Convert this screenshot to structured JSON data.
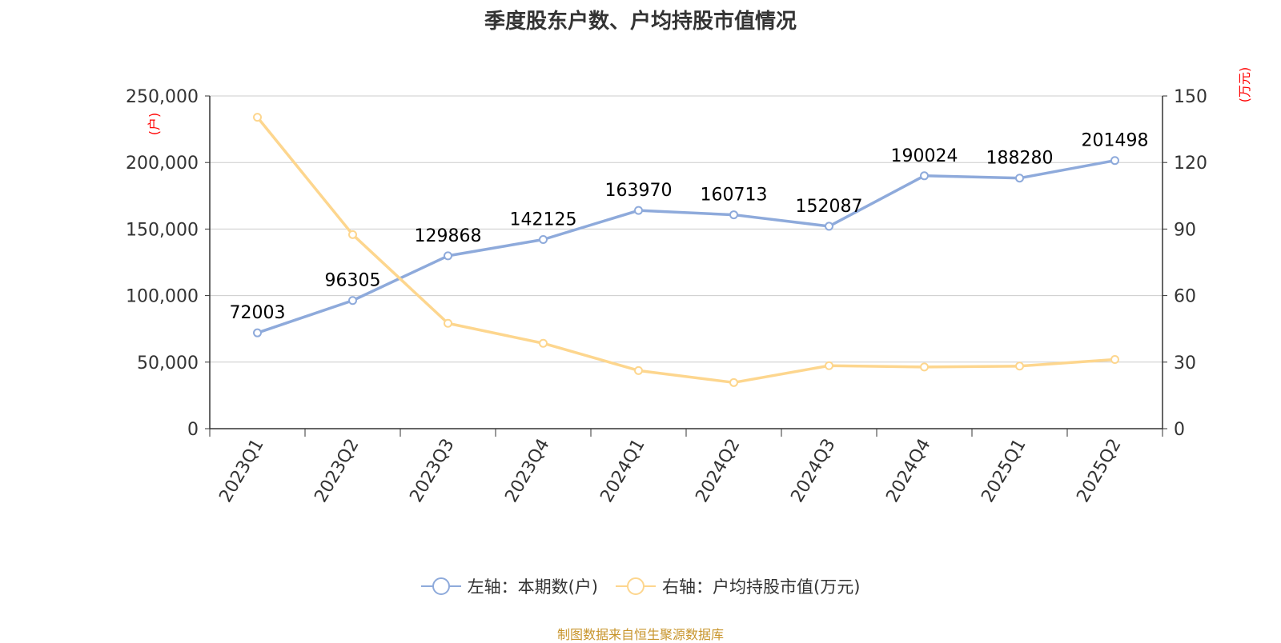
{
  "chart_data": {
    "type": "line",
    "title": "季度股东户数、户均持股市值情况",
    "categories": [
      "2023Q1",
      "2023Q2",
      "2023Q3",
      "2023Q4",
      "2024Q1",
      "2024Q2",
      "2024Q3",
      "2024Q4",
      "2025Q1",
      "2025Q2"
    ],
    "series": [
      {
        "name": "左轴：本期数(户)",
        "axis": "left",
        "color": "#8eaadb",
        "values": [
          72003,
          96305,
          129868,
          142125,
          163970,
          160713,
          152087,
          190024,
          188280,
          201498
        ],
        "data_labels": [
          "72003",
          "96305",
          "129868",
          "142125",
          "163970",
          "160713",
          "152087",
          "190024",
          "188280",
          "201498"
        ]
      },
      {
        "name": "右轴：户均持股市值(万元)",
        "axis": "right",
        "color": "#fdd68e",
        "values": [
          140.4,
          87.5,
          47.5,
          38.5,
          26.2,
          20.8,
          28.4,
          27.8,
          28.2,
          31.2
        ]
      }
    ],
    "left_axis": {
      "label": "(户)",
      "ylim": [
        0,
        250000
      ],
      "ticks": [
        "0",
        "50,000",
        "100,000",
        "150,000",
        "200,000",
        "250,000"
      ]
    },
    "right_axis": {
      "label": "(万元)",
      "ylim": [
        0,
        150
      ],
      "ticks": [
        "0",
        "30",
        "60",
        "90",
        "120",
        "150"
      ]
    },
    "grid": true,
    "legend_position": "bottom"
  },
  "source": "制图数据来自恒生聚源数据库",
  "colors": {
    "axis_label": "#ff0000",
    "grid": "#cccccc",
    "axis": "#333333",
    "text": "#333333",
    "source": "#c8952c"
  }
}
